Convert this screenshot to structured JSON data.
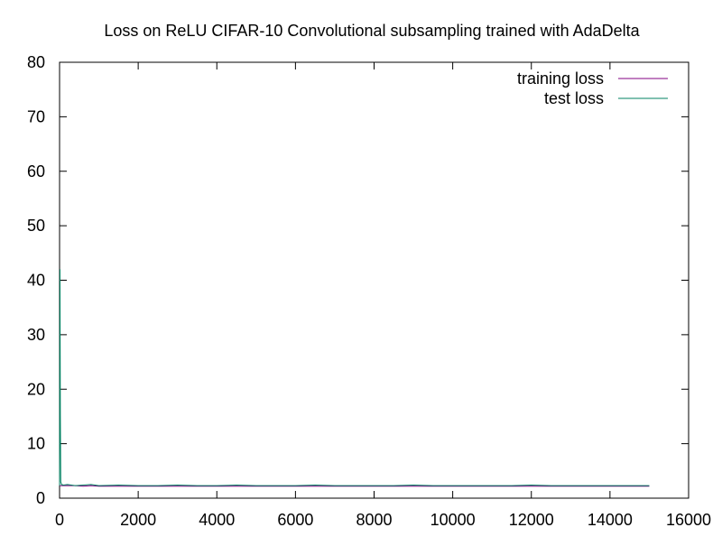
{
  "chart_data": {
    "type": "line",
    "title": "Loss on ReLU CIFAR-10 Convolutional subsampling trained with AdaDelta",
    "xlabel": "",
    "ylabel": "",
    "xlim": [
      0,
      16000
    ],
    "ylim": [
      0,
      80
    ],
    "x_ticks": [
      0,
      2000,
      4000,
      6000,
      8000,
      10000,
      12000,
      14000,
      16000
    ],
    "y_ticks": [
      0,
      10,
      20,
      30,
      40,
      50,
      60,
      70,
      80
    ],
    "legend_position": "top-right",
    "grid": false,
    "series": [
      {
        "name": "training loss",
        "color": "#800080",
        "x": [
          0,
          10,
          20,
          30,
          50,
          100,
          200,
          400,
          600,
          800,
          1000,
          1500,
          2000,
          2500,
          3000,
          3500,
          4000,
          4500,
          5000,
          5500,
          6000,
          6500,
          7000,
          7500,
          8000,
          8500,
          9000,
          9500,
          10000,
          10500,
          11000,
          11500,
          12000,
          12500,
          13000,
          13500,
          14000,
          14500,
          15000
        ],
        "y": [
          2.3,
          2.3,
          2.3,
          2.3,
          2.3,
          2.3,
          2.3,
          2.3,
          2.2,
          2.3,
          2.2,
          2.2,
          2.2,
          2.2,
          2.2,
          2.2,
          2.2,
          2.2,
          2.2,
          2.2,
          2.2,
          2.2,
          2.2,
          2.2,
          2.2,
          2.2,
          2.2,
          2.2,
          2.2,
          2.2,
          2.2,
          2.2,
          2.2,
          2.2,
          2.2,
          2.2,
          2.2,
          2.2,
          2.2
        ]
      },
      {
        "name": "test loss",
        "color": "#008060",
        "x": [
          0,
          10,
          20,
          30,
          50,
          100,
          200,
          400,
          600,
          800,
          1000,
          1500,
          2000,
          2500,
          3000,
          3500,
          4000,
          4500,
          5000,
          5500,
          6000,
          6500,
          7000,
          7500,
          8000,
          8500,
          9000,
          9500,
          10000,
          10500,
          11000,
          11500,
          12000,
          12500,
          13000,
          13500,
          14000,
          14500,
          15000
        ],
        "y": [
          2.3,
          42,
          15,
          3,
          2.5,
          2.4,
          2.5,
          2.3,
          2.4,
          2.5,
          2.3,
          2.4,
          2.3,
          2.3,
          2.4,
          2.3,
          2.3,
          2.4,
          2.3,
          2.3,
          2.3,
          2.4,
          2.3,
          2.3,
          2.3,
          2.3,
          2.4,
          2.3,
          2.3,
          2.3,
          2.3,
          2.3,
          2.4,
          2.3,
          2.3,
          2.3,
          2.3,
          2.3,
          2.3
        ]
      }
    ]
  }
}
